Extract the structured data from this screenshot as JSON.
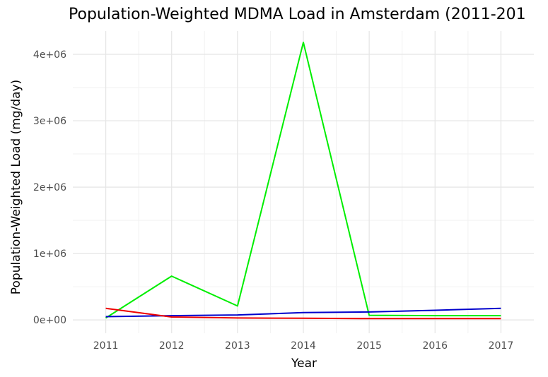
{
  "chart_data": {
    "type": "line",
    "title": "Population-Weighted MDMA Load in Amsterdam (2011-201",
    "xlabel": "Year",
    "ylabel": "Population-Weighted Load (mg/day)",
    "x": [
      2011,
      2012,
      2013,
      2014,
      2015,
      2016,
      2017
    ],
    "x_tick_labels": [
      "2011",
      "2012",
      "2013",
      "2014",
      "2015",
      "2016",
      "2017"
    ],
    "xlim": [
      2010.5,
      2017.5
    ],
    "ylim": [
      -200000,
      4350000
    ],
    "y_ticks": [
      0,
      1000000,
      2000000,
      3000000,
      4000000
    ],
    "y_tick_labels": [
      "0e+00",
      "1e+06",
      "2e+06",
      "3e+06",
      "4e+06"
    ],
    "grid": true,
    "legend": "none",
    "series": [
      {
        "color": "#00ee00",
        "values": [
          30000,
          660000,
          210000,
          4180000,
          70000,
          65000,
          65000
        ]
      },
      {
        "color": "#0000cc",
        "values": [
          50000,
          65000,
          75000,
          110000,
          120000,
          145000,
          175000
        ]
      },
      {
        "color": "#ee0000",
        "values": [
          175000,
          45000,
          30000,
          25000,
          20000,
          20000,
          20000
        ]
      }
    ]
  }
}
